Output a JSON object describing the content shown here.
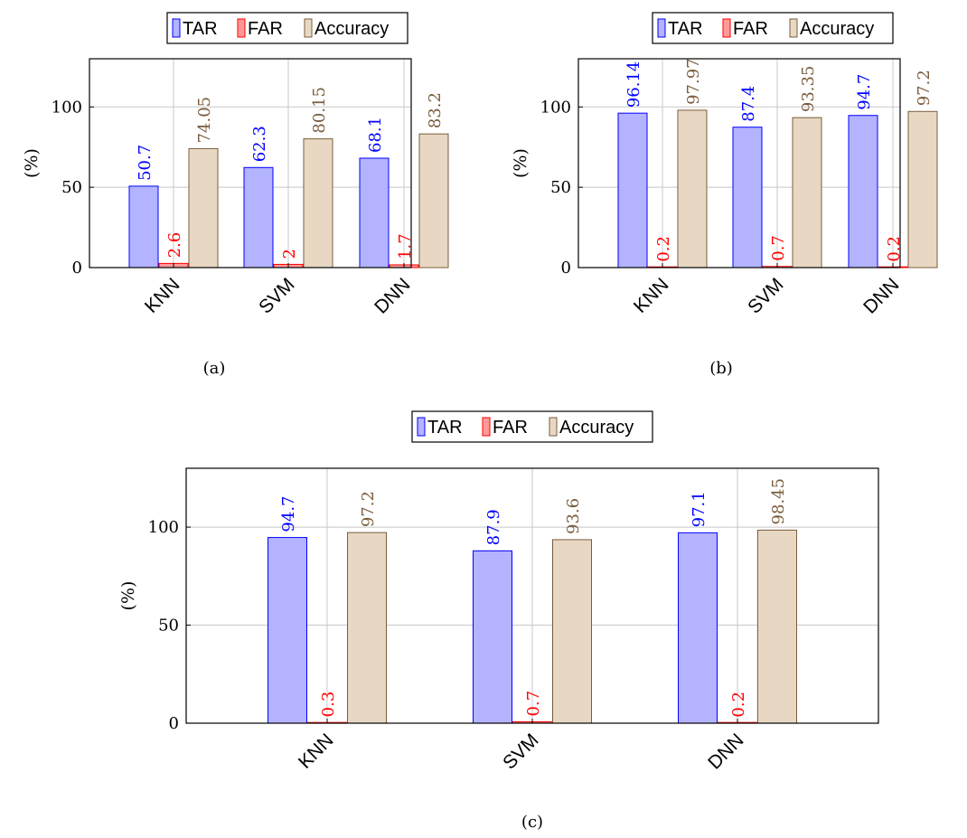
{
  "colors": {
    "tar_fill": "#b3b3ff",
    "tar_stroke": "#0000ff",
    "tar_label": "#0000ff",
    "far_fill": "#ff9999",
    "far_stroke": "#ff0000",
    "far_label": "#ff0000",
    "acc_fill": "#e8d8c3",
    "acc_stroke": "#7a5c3c",
    "acc_label": "#7a5c3c",
    "grid": "#c8c8c8",
    "axis": "#000000"
  },
  "chart_data": [
    {
      "type": "bar",
      "caption": "(a)",
      "categories": [
        "KNN",
        "SVM",
        "DNN"
      ],
      "series": [
        {
          "name": "TAR",
          "values": [
            50.7,
            62.3,
            68.1
          ],
          "labels": [
            "50.7",
            "62.3",
            "68.1"
          ]
        },
        {
          "name": "FAR",
          "values": [
            2.6,
            2,
            1.7
          ],
          "labels": [
            "2.6",
            "2",
            "1.7"
          ]
        },
        {
          "name": "Accuracy",
          "values": [
            74.05,
            80.15,
            83.2
          ],
          "labels": [
            "74.05",
            "80.15",
            "83.2"
          ]
        }
      ],
      "ylabel": "(%)",
      "yticks": [
        "0",
        "50",
        "100"
      ],
      "ylim": [
        0,
        130
      ],
      "grid": true,
      "legend": "top-center"
    },
    {
      "type": "bar",
      "caption": "(b)",
      "categories": [
        "KNN",
        "SVM",
        "DNN"
      ],
      "series": [
        {
          "name": "TAR",
          "values": [
            96.14,
            87.4,
            94.7
          ],
          "labels": [
            "96.14",
            "87.4",
            "94.7"
          ]
        },
        {
          "name": "FAR",
          "values": [
            0.2,
            0.7,
            0.2
          ],
          "labels": [
            "0.2",
            "0.7",
            "0.2"
          ]
        },
        {
          "name": "Accuracy",
          "values": [
            97.97,
            93.35,
            97.2
          ],
          "labels": [
            "97.97",
            "93.35",
            "97.2"
          ]
        }
      ],
      "ylabel": "(%)",
      "yticks": [
        "0",
        "50",
        "100"
      ],
      "ylim": [
        0,
        130
      ],
      "grid": true,
      "legend": "top-center"
    },
    {
      "type": "bar",
      "caption": "(c)",
      "categories": [
        "KNN",
        "SVM",
        "DNN"
      ],
      "series": [
        {
          "name": "TAR",
          "values": [
            94.7,
            87.9,
            97.1
          ],
          "labels": [
            "94.7",
            "87.9",
            "97.1"
          ]
        },
        {
          "name": "FAR",
          "values": [
            0.3,
            0.7,
            0.2
          ],
          "labels": [
            "0.3",
            "0.7",
            "0.2"
          ]
        },
        {
          "name": "Accuracy",
          "values": [
            97.2,
            93.6,
            98.45
          ],
          "labels": [
            "97.2",
            "93.6",
            "98.45"
          ]
        }
      ],
      "ylabel": "(%)",
      "yticks": [
        "0",
        "50",
        "100"
      ],
      "ylim": [
        0,
        130
      ],
      "grid": true,
      "legend": "top-center"
    }
  ]
}
